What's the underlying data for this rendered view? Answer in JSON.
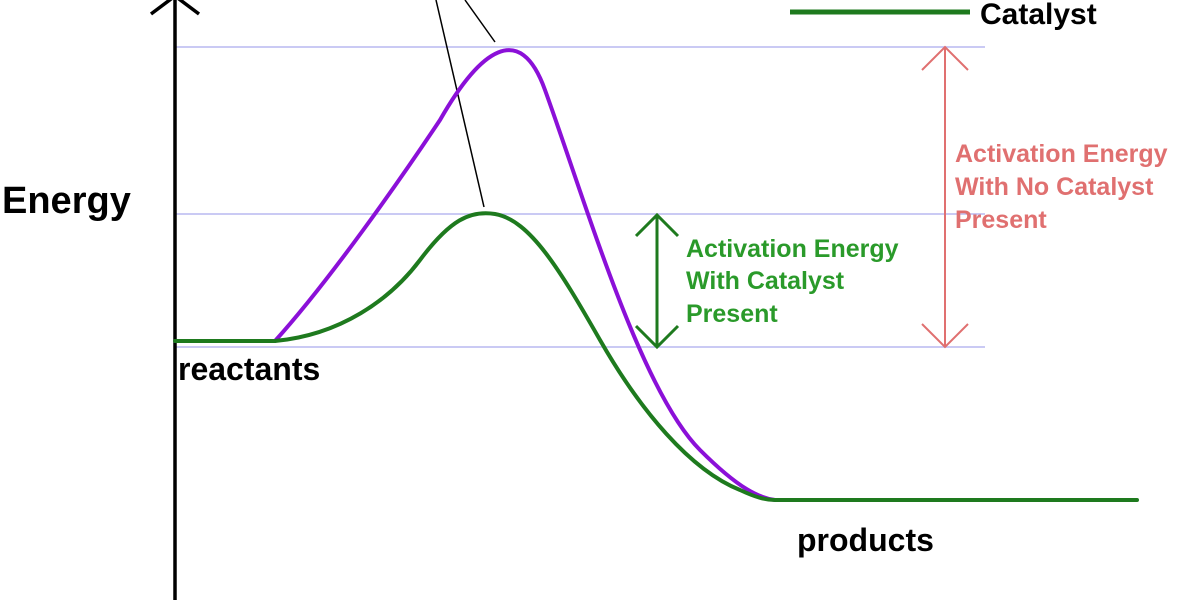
{
  "y_axis_label": "Energy",
  "legend": {
    "label": "Catalyst",
    "color": "#1e7a1e"
  },
  "labels": {
    "reactants": "reactants",
    "products": "products",
    "with_catalyst": [
      "Activation Energy",
      "With Catalyst",
      "Present"
    ],
    "no_catalyst": [
      "Activation Energy",
      "With No Catalyst",
      "Present"
    ]
  },
  "colors": {
    "uncatalyzed": "#8b10d8",
    "catalyzed": "#1e7a1e",
    "with_catalyst_text": "#2a9a2a",
    "no_catalyst_text": "#e07070",
    "reference_lines": "#b8b8f0",
    "axis": "#000000"
  },
  "icons": {
    "axis_arrow": "arrow-up-icon"
  }
}
